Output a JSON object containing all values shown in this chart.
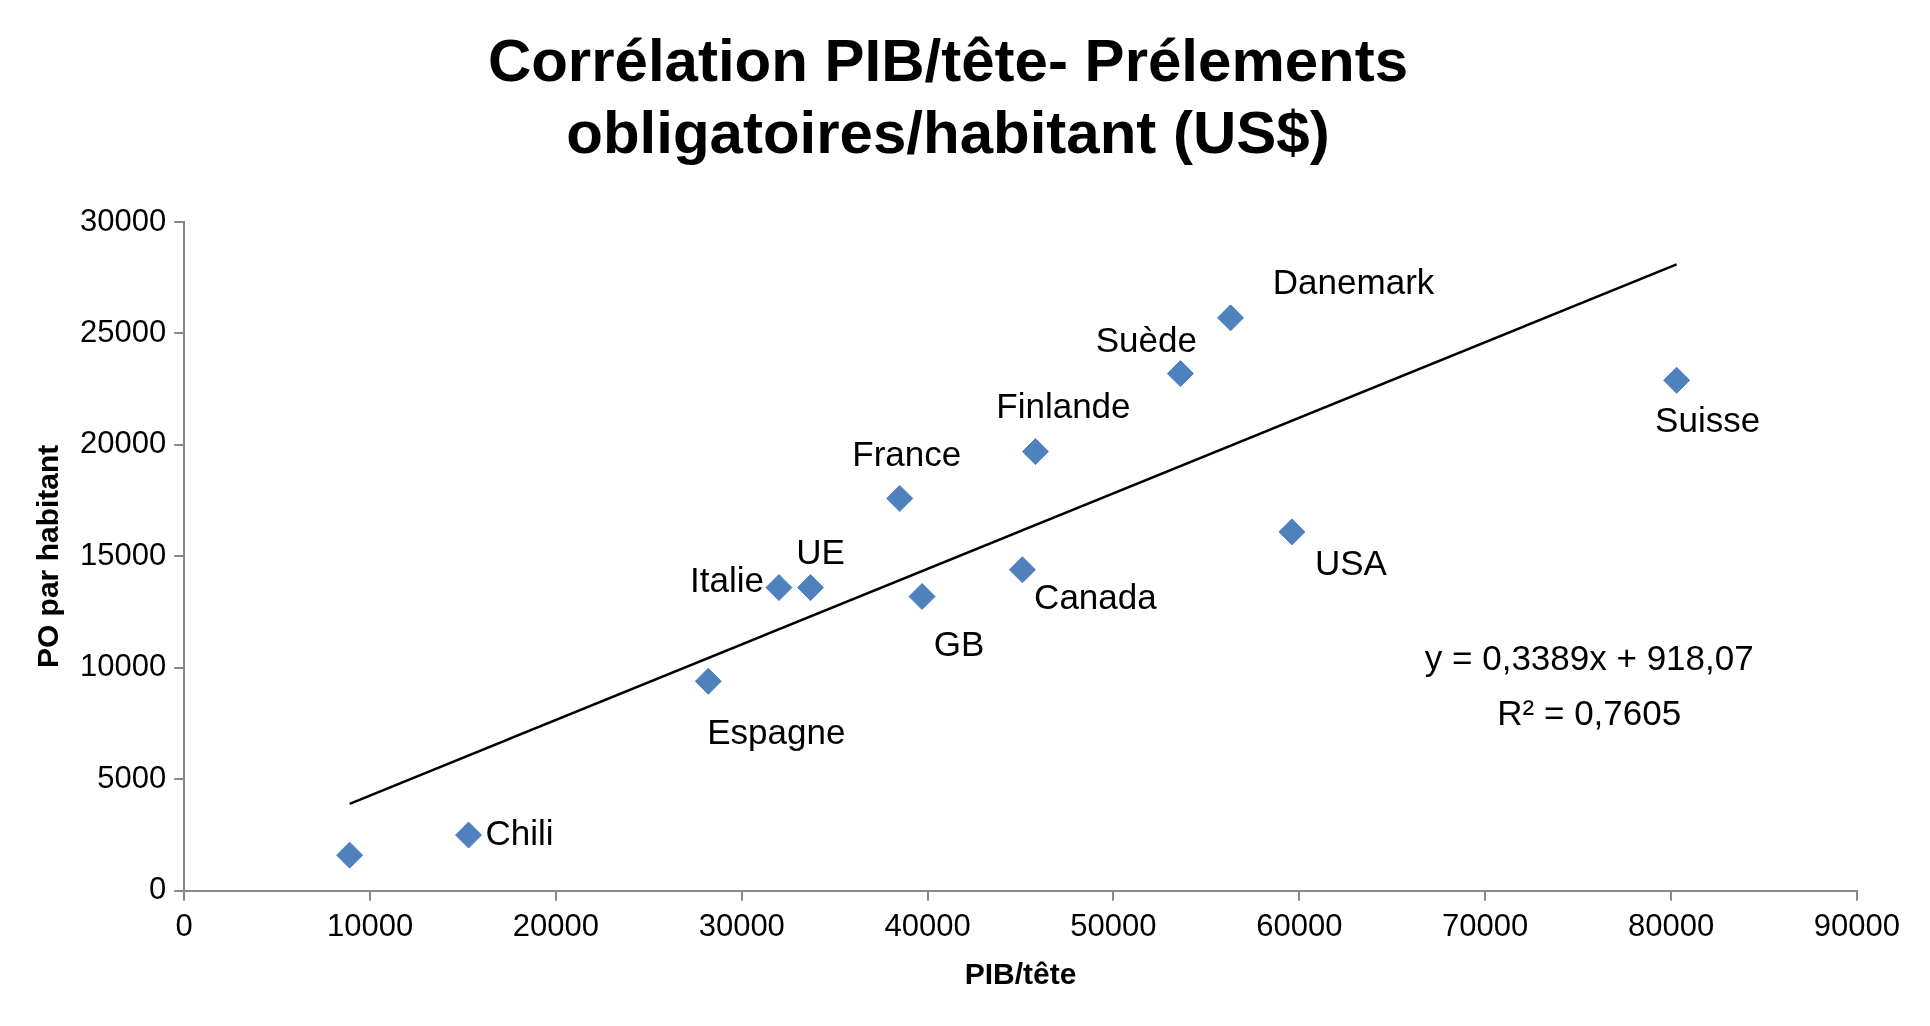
{
  "chart_data": {
    "type": "scatter",
    "title": "Corrélation PIB/tête- Prélements obligatoires/habitant (US$)",
    "xlabel": "PIB/tête",
    "ylabel": "PO par habitant",
    "xlim": [
      0,
      90000
    ],
    "xticks": [
      0,
      10000,
      20000,
      30000,
      40000,
      50000,
      60000,
      70000,
      80000,
      90000
    ],
    "ylim": [
      0,
      30000
    ],
    "yticks": [
      0,
      5000,
      10000,
      15000,
      20000,
      25000,
      30000
    ],
    "grid": false,
    "legend": false,
    "series": [
      {
        "type": "scatter",
        "marker": "diamond",
        "color": "#4f81bd",
        "x": [
          8900,
          15300,
          28200,
          32000,
          33700,
          38500,
          39700,
          45100,
          45800,
          53600,
          56300,
          59600,
          80300
        ],
        "values": [
          1600,
          2500,
          9400,
          13600,
          13600,
          17600,
          13200,
          14400,
          19700,
          23200,
          25700,
          16100,
          22900
        ]
      },
      {
        "type": "line",
        "marker": "none",
        "color": "#000000",
        "x": [
          8900,
          80300
        ],
        "values": [
          3900,
          28100
        ]
      }
    ],
    "annotations": [
      {
        "text": "Chili",
        "x": 15300,
        "y": 2500
      },
      {
        "text": "Espagne",
        "x": 28200,
        "y": 9400
      },
      {
        "text": "Italie",
        "x": 32000,
        "y": 13600
      },
      {
        "text": "UE",
        "x": 33700,
        "y": 13600
      },
      {
        "text": "France",
        "x": 38500,
        "y": 17600
      },
      {
        "text": "GB",
        "x": 39700,
        "y": 13200
      },
      {
        "text": "Canada",
        "x": 45100,
        "y": 14400
      },
      {
        "text": "Finlande",
        "x": 45800,
        "y": 19700
      },
      {
        "text": "Suède",
        "x": 53600,
        "y": 23200
      },
      {
        "text": "Danemark",
        "x": 56300,
        "y": 25700
      },
      {
        "text": "USA",
        "x": 59600,
        "y": 16100
      },
      {
        "text": "Suisse",
        "x": 80300,
        "y": 22900
      },
      "y = 0,3389x + 918,07",
      "R² = 0,7605"
    ]
  }
}
